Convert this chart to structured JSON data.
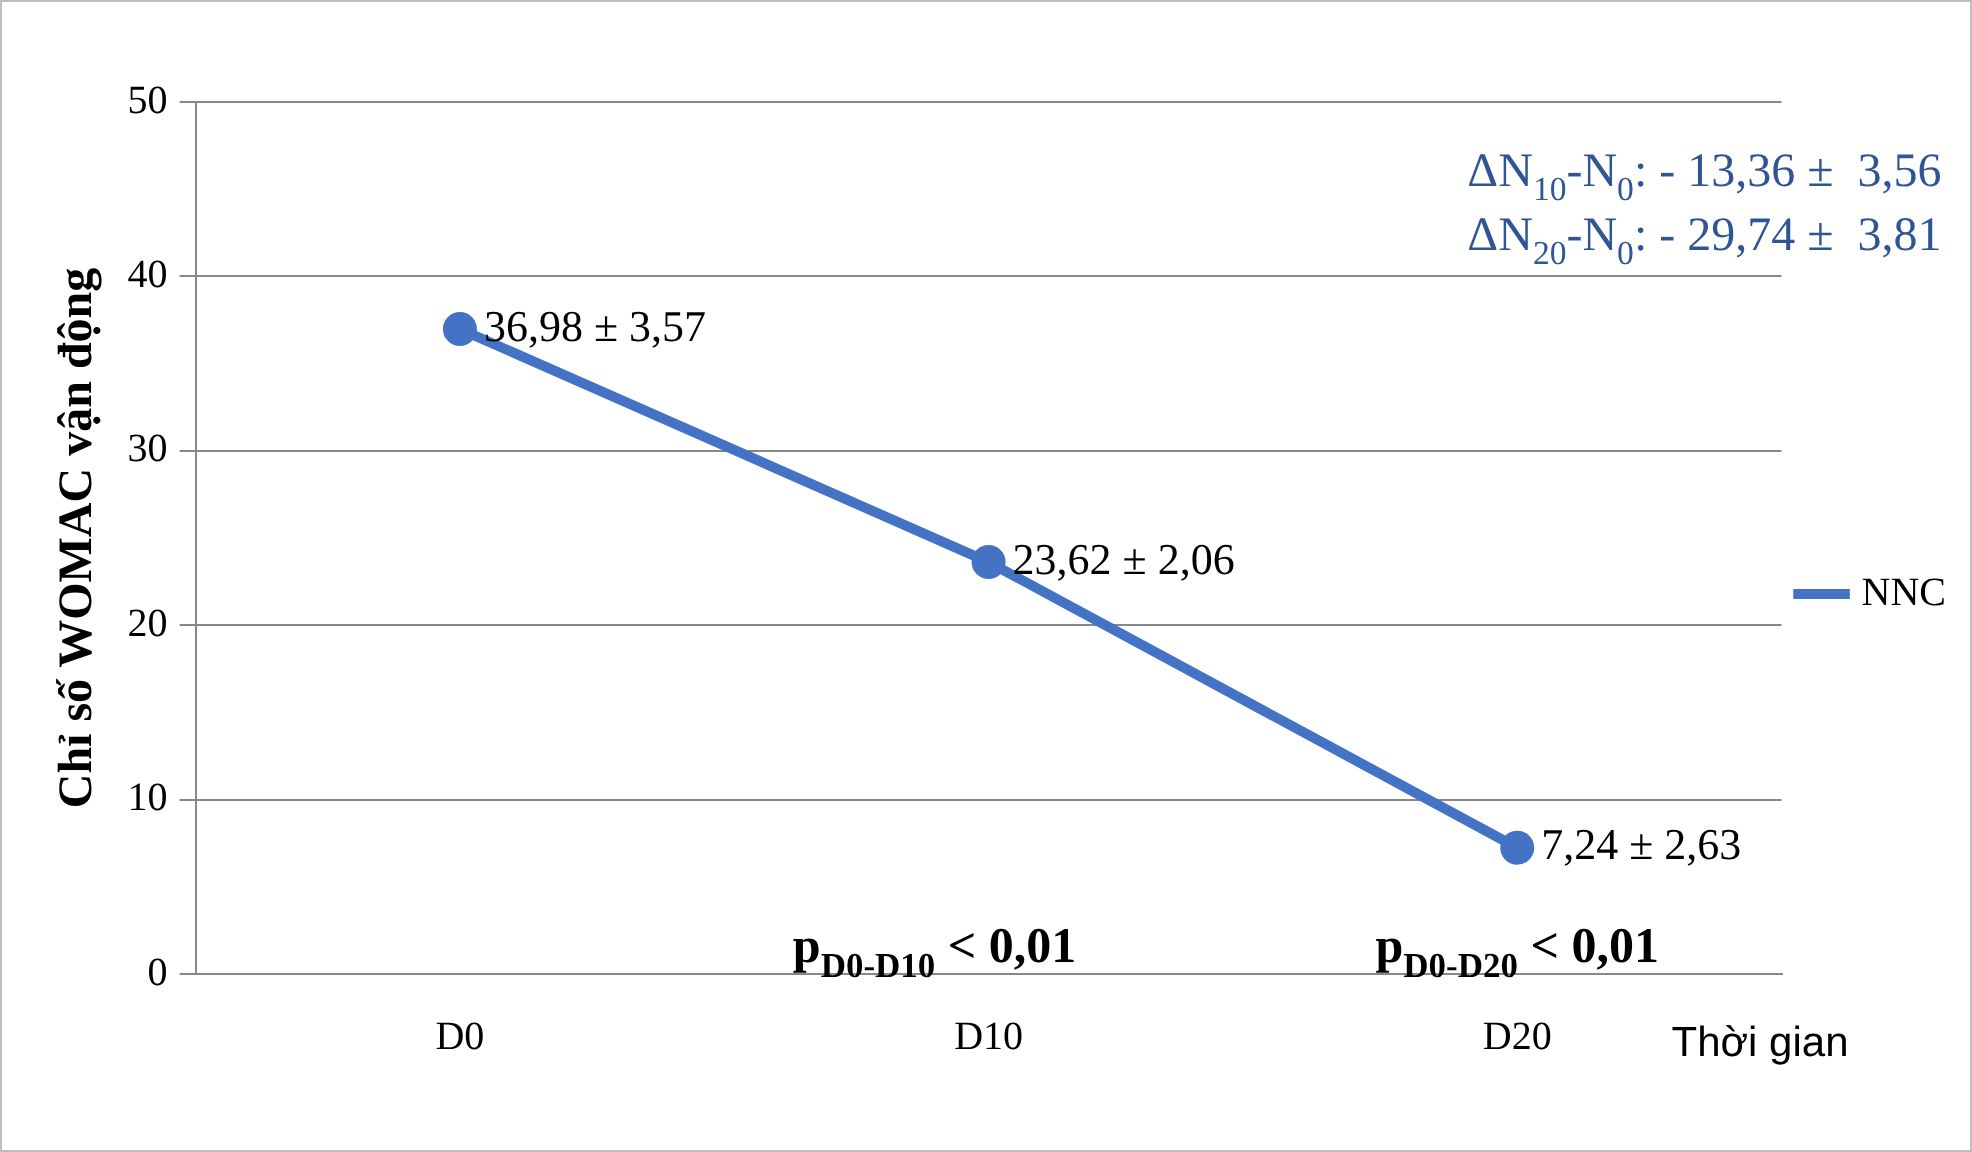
{
  "chart_data": {
    "type": "line",
    "ylabel": "Chỉ số WOMAC vận động",
    "xlabel": "Thời gian",
    "categories": [
      "D0",
      "D10",
      "D20"
    ],
    "series": [
      {
        "name": "NNC",
        "color": "#4472c4",
        "values": [
          36.98,
          23.62,
          7.24
        ],
        "value_labels": [
          "36,98 ± 3,57",
          "23,62 ± 2,06",
          "7,24 ± 2,63"
        ]
      }
    ],
    "ylim": [
      0,
      50
    ],
    "yticks": [
      0,
      10,
      20,
      30,
      40,
      50
    ],
    "grid": "y",
    "legend": "right",
    "marker": "circle",
    "line_style": "solid",
    "annotations": [
      "ΔN$_{10}$-N$_{0}$: - 13,36 ±  3,56",
      "ΔN$_{20}$-N$_{0}$: - 29,74 ±  3,81",
      "p$_{D0-D10}$ < 0,01",
      "p$_{D0-D20}$ < 0,01"
    ]
  }
}
